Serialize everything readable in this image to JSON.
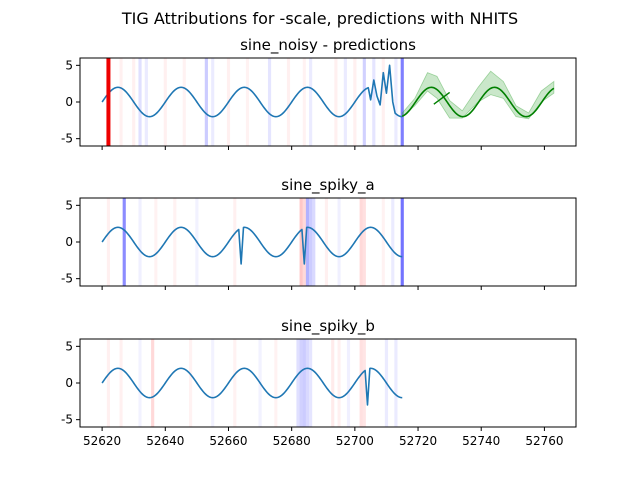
{
  "suptitle": "TIG Attributions for -scale, predictions with NHITS",
  "colors": {
    "series": "#1f77b4",
    "prediction": "#008000",
    "band": "#2ca02c",
    "positive_attr": "#0000ff",
    "negative_attr": "#ff0000",
    "marker": "#ee0000",
    "axis": "#000000"
  },
  "chart_data": [
    {
      "type": "line",
      "title": "sine_noisy - predictions",
      "xlim": [
        52613,
        52770
      ],
      "ylim": [
        -6,
        6
      ],
      "yticks": [
        5,
        0,
        -5
      ],
      "xticks": [
        52620,
        52640,
        52660,
        52680,
        52700,
        52720,
        52740,
        52760
      ],
      "show_xtick_labels": false,
      "series": {
        "x_start": 52620,
        "x_end": 52715,
        "period": 20,
        "amplitude": 2,
        "noise_points": [
          {
            "x": 52705,
            "y": 0.3
          },
          {
            "x": 52706,
            "y": 3.0
          },
          {
            "x": 52707,
            "y": 0.8
          },
          {
            "x": 52708,
            "y": -0.4
          },
          {
            "x": 52709,
            "y": 4.0
          },
          {
            "x": 52710,
            "y": 1.2
          },
          {
            "x": 52711,
            "y": 5.0
          },
          {
            "x": 52712,
            "y": 0.0
          }
        ]
      },
      "prediction": {
        "x_start": 52715,
        "x_end": 52763,
        "band_high": [
          {
            "x": 52715,
            "y": -1.5
          },
          {
            "x": 52719,
            "y": 0.5
          },
          {
            "x": 52723,
            "y": 4.0
          },
          {
            "x": 52726,
            "y": 3.5
          },
          {
            "x": 52730,
            "y": 0.2
          },
          {
            "x": 52734,
            "y": -1.2
          },
          {
            "x": 52739,
            "y": 2.0
          },
          {
            "x": 52743,
            "y": 4.2
          },
          {
            "x": 52747,
            "y": 2.8
          },
          {
            "x": 52751,
            "y": -0.5
          },
          {
            "x": 52755,
            "y": -1.5
          },
          {
            "x": 52759,
            "y": 1.5
          },
          {
            "x": 52763,
            "y": 2.8
          }
        ],
        "band_low": [
          {
            "x": 52715,
            "y": -2.0
          },
          {
            "x": 52719,
            "y": -0.5
          },
          {
            "x": 52723,
            "y": 1.5
          },
          {
            "x": 52726,
            "y": 0.5
          },
          {
            "x": 52730,
            "y": -2.2
          },
          {
            "x": 52734,
            "y": -2.2
          },
          {
            "x": 52739,
            "y": 0.0
          },
          {
            "x": 52743,
            "y": 1.0
          },
          {
            "x": 52747,
            "y": 0.5
          },
          {
            "x": 52751,
            "y": -2.0
          },
          {
            "x": 52755,
            "y": -2.3
          },
          {
            "x": 52759,
            "y": 0.0
          },
          {
            "x": 52763,
            "y": 1.2
          }
        ],
        "mean_phase_shift": 0.8,
        "stray_segment": [
          {
            "x": 52725,
            "y": -0.3
          },
          {
            "x": 52730,
            "y": 1.3
          }
        ]
      },
      "marker_line": {
        "x": 52622
      },
      "attributions": {
        "positive": [
          {
            "x": 52632,
            "alpha": 0.12
          },
          {
            "x": 52634,
            "alpha": 0.08
          },
          {
            "x": 52653,
            "alpha": 0.2
          },
          {
            "x": 52655,
            "alpha": 0.08
          },
          {
            "x": 52673,
            "alpha": 0.1
          },
          {
            "x": 52686,
            "alpha": 0.08
          },
          {
            "x": 52697,
            "alpha": 0.08
          },
          {
            "x": 52703,
            "alpha": 0.18
          },
          {
            "x": 52706,
            "alpha": 0.1
          },
          {
            "x": 52713,
            "alpha": 0.08
          },
          {
            "x": 52715,
            "alpha": 0.5
          }
        ],
        "negative": [
          {
            "x": 52626,
            "alpha": 0.06
          },
          {
            "x": 52630,
            "alpha": 0.06
          },
          {
            "x": 52640,
            "alpha": 0.06
          },
          {
            "x": 52646,
            "alpha": 0.05
          },
          {
            "x": 52660,
            "alpha": 0.06
          },
          {
            "x": 52666,
            "alpha": 0.05
          },
          {
            "x": 52679,
            "alpha": 0.06
          },
          {
            "x": 52684,
            "alpha": 0.05
          },
          {
            "x": 52694,
            "alpha": 0.06
          },
          {
            "x": 52700,
            "alpha": 0.06
          },
          {
            "x": 52709,
            "alpha": 0.06
          }
        ]
      }
    },
    {
      "type": "line",
      "title": "sine_spiky_a",
      "xlim": [
        52613,
        52770
      ],
      "ylim": [
        -6,
        6
      ],
      "yticks": [
        5,
        0,
        -5
      ],
      "xticks": [
        52620,
        52640,
        52660,
        52680,
        52700,
        52720,
        52740,
        52760
      ],
      "show_xtick_labels": false,
      "series": {
        "x_start": 52620,
        "x_end": 52715,
        "period": 20,
        "amplitude": 2,
        "spikes": [
          {
            "x": 52664,
            "y": -3.0
          },
          {
            "x": 52684,
            "y": -3.0
          }
        ]
      },
      "attributions": {
        "positive": [
          {
            "x": 52627,
            "alpha": 0.45
          },
          {
            "x": 52632,
            "alpha": 0.06
          },
          {
            "x": 52650,
            "alpha": 0.05
          },
          {
            "x": 52685,
            "alpha": 0.3
          },
          {
            "x": 52686,
            "alpha": 0.2
          },
          {
            "x": 52687,
            "alpha": 0.15
          },
          {
            "x": 52695,
            "alpha": 0.06
          },
          {
            "x": 52712,
            "alpha": 0.08
          },
          {
            "x": 52715,
            "alpha": 0.55
          }
        ],
        "negative": [
          {
            "x": 52622,
            "alpha": 0.06
          },
          {
            "x": 52637,
            "alpha": 0.05
          },
          {
            "x": 52643,
            "alpha": 0.05
          },
          {
            "x": 52662,
            "alpha": 0.06
          },
          {
            "x": 52683,
            "alpha": 0.22
          },
          {
            "x": 52684,
            "alpha": 0.15
          },
          {
            "x": 52691,
            "alpha": 0.06
          },
          {
            "x": 52702,
            "alpha": 0.15
          },
          {
            "x": 52703,
            "alpha": 0.12
          },
          {
            "x": 52709,
            "alpha": 0.05
          }
        ]
      }
    },
    {
      "type": "line",
      "title": "sine_spiky_b",
      "xlim": [
        52613,
        52770
      ],
      "ylim": [
        -6,
        6
      ],
      "yticks": [
        5,
        0,
        -5
      ],
      "xticks": [
        52620,
        52640,
        52660,
        52680,
        52700,
        52720,
        52740,
        52760
      ],
      "xtick_labels": [
        "52620",
        "52640",
        "52660",
        "52680",
        "52700",
        "52720",
        "52740",
        "52760"
      ],
      "show_xtick_labels": true,
      "series": {
        "x_start": 52620,
        "x_end": 52715,
        "period": 20,
        "amplitude": 2,
        "spikes": [
          {
            "x": 52704,
            "y": -3.0
          }
        ]
      },
      "attributions": {
        "positive": [
          {
            "x": 52632,
            "alpha": 0.05
          },
          {
            "x": 52655,
            "alpha": 0.05
          },
          {
            "x": 52670,
            "alpha": 0.05
          },
          {
            "x": 52682,
            "alpha": 0.12
          },
          {
            "x": 52683,
            "alpha": 0.18
          },
          {
            "x": 52684,
            "alpha": 0.2
          },
          {
            "x": 52685,
            "alpha": 0.15
          },
          {
            "x": 52686,
            "alpha": 0.1
          },
          {
            "x": 52698,
            "alpha": 0.06
          },
          {
            "x": 52710,
            "alpha": 0.08
          },
          {
            "x": 52713,
            "alpha": 0.08
          }
        ],
        "negative": [
          {
            "x": 52622,
            "alpha": 0.06
          },
          {
            "x": 52626,
            "alpha": 0.06
          },
          {
            "x": 52636,
            "alpha": 0.15
          },
          {
            "x": 52648,
            "alpha": 0.05
          },
          {
            "x": 52662,
            "alpha": 0.05
          },
          {
            "x": 52675,
            "alpha": 0.05
          },
          {
            "x": 52693,
            "alpha": 0.08
          },
          {
            "x": 52695,
            "alpha": 0.06
          },
          {
            "x": 52702,
            "alpha": 0.12
          },
          {
            "x": 52703,
            "alpha": 0.1
          }
        ]
      }
    }
  ]
}
